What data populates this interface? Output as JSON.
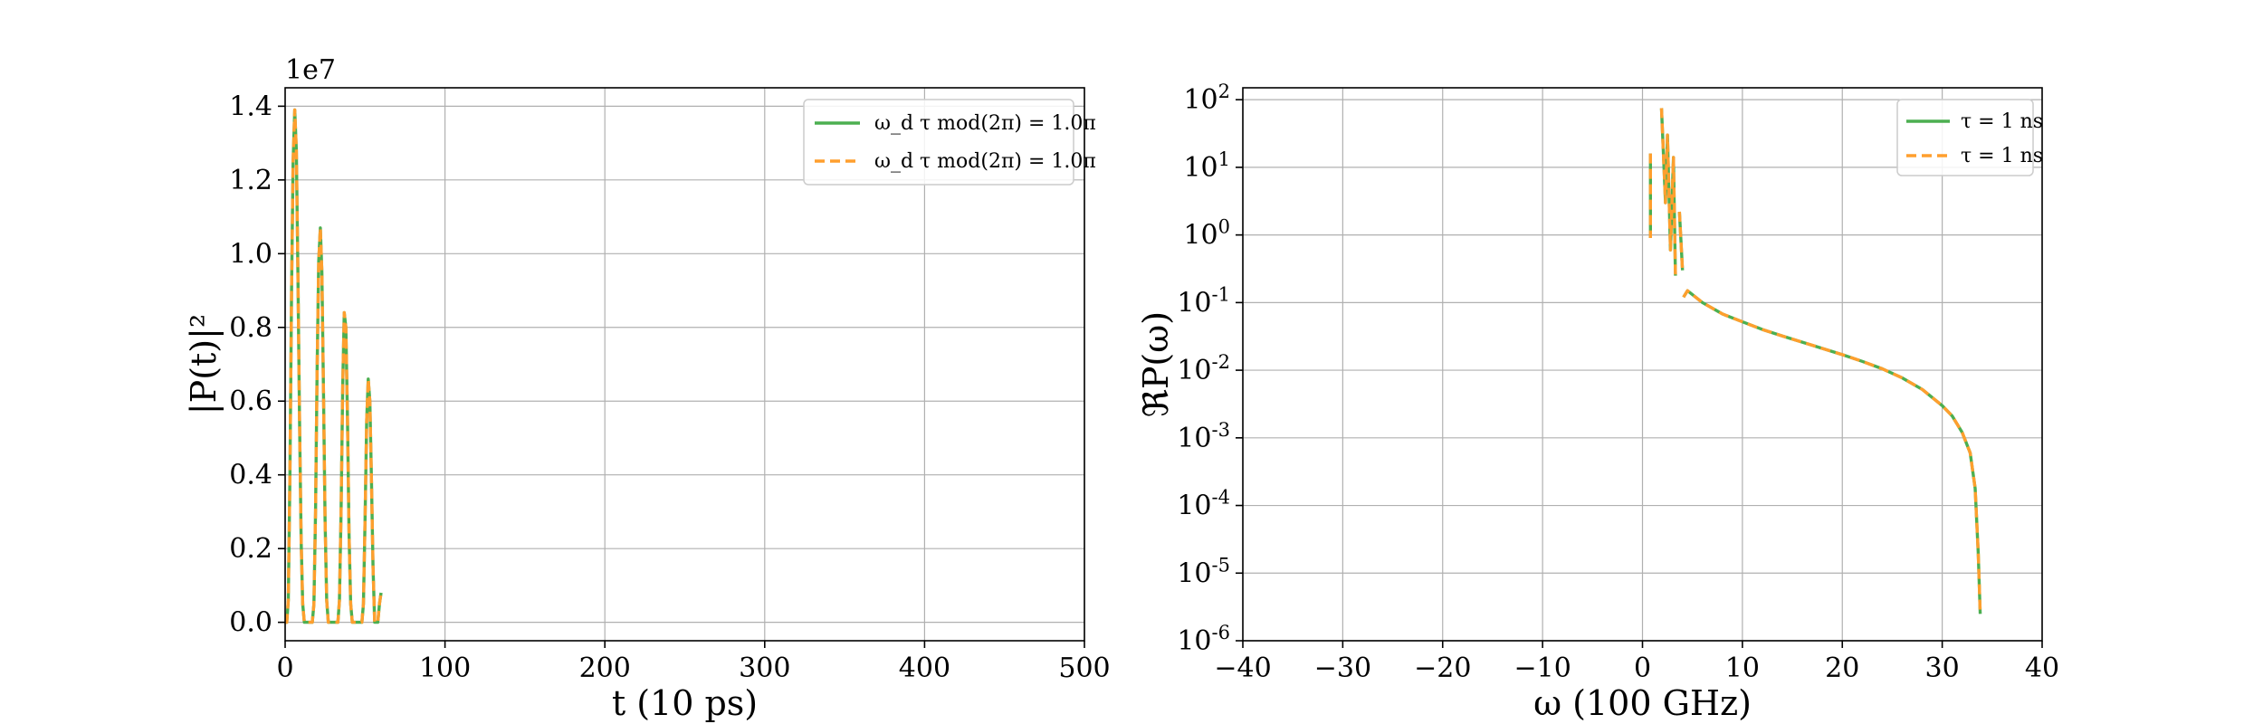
{
  "colors": {
    "green": "#4caf50",
    "orange": "#ff9f2e",
    "grid": "#b0b0b0"
  },
  "chart_data": [
    {
      "type": "line",
      "title": "",
      "xlabel": "t (10 ps)",
      "ylabel": "|P(t)|²",
      "offset_text": "1e7",
      "xlim": [
        0,
        500
      ],
      "ylim": [
        -0.05,
        1.45
      ],
      "y_scale_multiplier": 10000000,
      "xticks": [
        0,
        100,
        200,
        300,
        400,
        500
      ],
      "xtick_labels": [
        "0",
        "100",
        "200",
        "300",
        "400",
        "500"
      ],
      "yticks": [
        0.0,
        0.2,
        0.4,
        0.6,
        0.8,
        1.0,
        1.2,
        1.4
      ],
      "ytick_labels": [
        "0.0",
        "0.2",
        "0.4",
        "0.6",
        "0.8",
        "1.0",
        "1.2",
        "1.4"
      ],
      "grid": true,
      "legend_position": "top-right",
      "x": [
        0,
        1,
        2,
        3,
        4,
        5,
        6,
        7,
        8,
        9,
        10,
        11,
        12,
        13,
        14,
        15,
        16,
        17,
        18,
        19,
        20,
        21,
        22,
        23,
        24,
        25,
        26,
        27,
        28,
        29,
        30,
        31,
        32,
        33,
        34,
        35,
        36,
        37,
        38,
        39,
        40,
        41,
        42,
        43,
        44,
        45,
        46,
        47,
        48,
        49,
        50,
        51,
        52,
        53,
        54,
        55,
        56,
        57,
        58,
        59,
        60
      ],
      "series": [
        {
          "name": "ω_d τ mod(2π) = 1.0π",
          "color": "#4caf50",
          "dash": "solid",
          "values": [
            0.0,
            0.0,
            0.06,
            0.4,
            0.9,
            1.25,
            1.39,
            1.28,
            0.95,
            0.55,
            0.22,
            0.05,
            0.0,
            0.0,
            0.0,
            0.0,
            0.0,
            0.0,
            0.05,
            0.3,
            0.68,
            0.98,
            1.07,
            0.95,
            0.62,
            0.28,
            0.06,
            0.0,
            0.0,
            0.0,
            0.0,
            0.0,
            0.0,
            0.0,
            0.06,
            0.3,
            0.64,
            0.84,
            0.8,
            0.55,
            0.24,
            0.05,
            0.0,
            0.0,
            0.0,
            0.0,
            0.0,
            0.0,
            0.0,
            0.05,
            0.28,
            0.55,
            0.66,
            0.6,
            0.38,
            0.15,
            0.0,
            0.0,
            0.0,
            0.05,
            0.08
          ]
        },
        {
          "name": "ω_d τ mod(2π) = 1.0π",
          "color": "#ff9f2e",
          "dash": "dashed",
          "values": [
            0.0,
            0.0,
            0.06,
            0.4,
            0.9,
            1.25,
            1.39,
            1.28,
            0.95,
            0.55,
            0.22,
            0.05,
            0.0,
            0.0,
            0.0,
            0.0,
            0.0,
            0.0,
            0.05,
            0.3,
            0.68,
            0.98,
            1.07,
            0.95,
            0.62,
            0.28,
            0.06,
            0.0,
            0.0,
            0.0,
            0.0,
            0.0,
            0.0,
            0.0,
            0.06,
            0.3,
            0.64,
            0.84,
            0.8,
            0.55,
            0.24,
            0.05,
            0.0,
            0.0,
            0.0,
            0.0,
            0.0,
            0.0,
            0.0,
            0.05,
            0.28,
            0.55,
            0.66,
            0.6,
            0.38,
            0.15,
            0.0,
            0.0,
            0.0,
            0.05,
            0.08
          ]
        }
      ]
    },
    {
      "type": "line",
      "title": "",
      "xlabel": "ω (100 GHz)",
      "ylabel": "ℜP(ω)",
      "xlim": [
        -40,
        40
      ],
      "ylim": [
        1e-06,
        150
      ],
      "yscale": "log",
      "xticks": [
        -40,
        -30,
        -20,
        -10,
        0,
        10,
        20,
        30,
        40
      ],
      "xtick_labels": [
        "−40",
        "−30",
        "−20",
        "−10",
        "0",
        "10",
        "20",
        "30",
        "40"
      ],
      "yticks": [
        1e-06,
        1e-05,
        0.0001,
        0.001,
        0.01,
        0.1,
        1,
        10,
        100
      ],
      "ytick_labels": [
        {
          "base": "10",
          "exp": "-6"
        },
        {
          "base": "10",
          "exp": "-5"
        },
        {
          "base": "10",
          "exp": "-4"
        },
        {
          "base": "10",
          "exp": "-3"
        },
        {
          "base": "10",
          "exp": "-2"
        },
        {
          "base": "10",
          "exp": "-1"
        },
        {
          "base": "10",
          "exp": "0"
        },
        {
          "base": "10",
          "exp": "1"
        },
        {
          "base": "10",
          "exp": "2"
        }
      ],
      "grid": true,
      "legend_position": "top-right",
      "series": [
        {
          "name": "τ = 1 ns",
          "color": "#4caf50",
          "dash": "solid",
          "segments": [
            [
              [
                0.8,
                16
              ],
              [
                0.8,
                0.9
              ]
            ],
            [
              [
                1.9,
                75
              ],
              [
                2.3,
                3
              ],
              [
                2.5,
                30
              ],
              [
                2.8,
                0.6
              ],
              [
                3.1,
                14
              ],
              [
                3.3,
                0.25
              ]
            ],
            [
              [
                3.7,
                2.2
              ],
              [
                4.0,
                0.3
              ]
            ],
            [
              [
                4.1,
                0.12
              ],
              [
                4.5,
                0.15
              ],
              [
                6,
                0.1
              ],
              [
                8,
                0.068
              ],
              [
                10,
                0.052
              ],
              [
                12,
                0.04
              ],
              [
                14,
                0.032
              ],
              [
                16,
                0.026
              ],
              [
                18,
                0.021
              ],
              [
                20,
                0.017
              ],
              [
                22,
                0.0135
              ],
              [
                24,
                0.0105
              ],
              [
                26,
                0.0077
              ],
              [
                28,
                0.0052
              ],
              [
                30,
                0.003
              ],
              [
                31,
                0.0021
              ],
              [
                32,
                0.0012
              ],
              [
                32.8,
                0.0006
              ],
              [
                33.3,
                0.00018
              ],
              [
                33.6,
                2e-05
              ],
              [
                33.8,
                2.5e-06
              ]
            ]
          ]
        },
        {
          "name": "τ = 1 ns",
          "color": "#ff9f2e",
          "dash": "dashed",
          "segments": [
            [
              [
                0.8,
                16
              ],
              [
                0.8,
                0.9
              ]
            ],
            [
              [
                1.9,
                75
              ],
              [
                2.3,
                3
              ],
              [
                2.5,
                30
              ],
              [
                2.8,
                0.6
              ],
              [
                3.1,
                14
              ],
              [
                3.3,
                0.25
              ]
            ],
            [
              [
                3.7,
                2.2
              ],
              [
                4.0,
                0.3
              ]
            ],
            [
              [
                4.1,
                0.12
              ],
              [
                4.5,
                0.15
              ],
              [
                6,
                0.1
              ],
              [
                8,
                0.068
              ],
              [
                10,
                0.052
              ],
              [
                12,
                0.04
              ],
              [
                14,
                0.032
              ],
              [
                16,
                0.026
              ],
              [
                18,
                0.021
              ],
              [
                20,
                0.017
              ],
              [
                22,
                0.0135
              ],
              [
                24,
                0.0105
              ],
              [
                26,
                0.0077
              ],
              [
                28,
                0.0052
              ],
              [
                30,
                0.003
              ],
              [
                31,
                0.0021
              ],
              [
                32,
                0.0012
              ],
              [
                32.8,
                0.0006
              ],
              [
                33.3,
                0.00018
              ],
              [
                33.6,
                2e-05
              ],
              [
                33.8,
                2.5e-06
              ]
            ]
          ]
        }
      ]
    }
  ]
}
